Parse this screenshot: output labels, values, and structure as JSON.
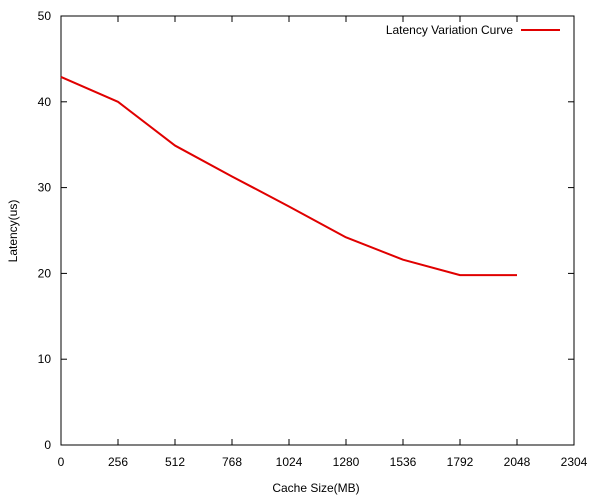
{
  "chart_data": {
    "type": "line",
    "xlabel": "Cache Size(MB)",
    "ylabel": "Latency(us)",
    "xlim": [
      0,
      2304
    ],
    "ylim": [
      0,
      50
    ],
    "xticks": [
      0,
      256,
      512,
      768,
      1024,
      1280,
      1536,
      1792,
      2048,
      2304
    ],
    "yticks": [
      0,
      10,
      20,
      30,
      40,
      50
    ],
    "grid": false,
    "legend_position": "top-right",
    "series": [
      {
        "name": "Latency Variation Curve",
        "color": "#e00000",
        "x": [
          0,
          256,
          512,
          768,
          1024,
          1280,
          1536,
          1792,
          2048
        ],
        "y": [
          42.9,
          40.0,
          34.9,
          31.3,
          27.8,
          24.2,
          21.6,
          19.8,
          19.8
        ]
      }
    ]
  }
}
